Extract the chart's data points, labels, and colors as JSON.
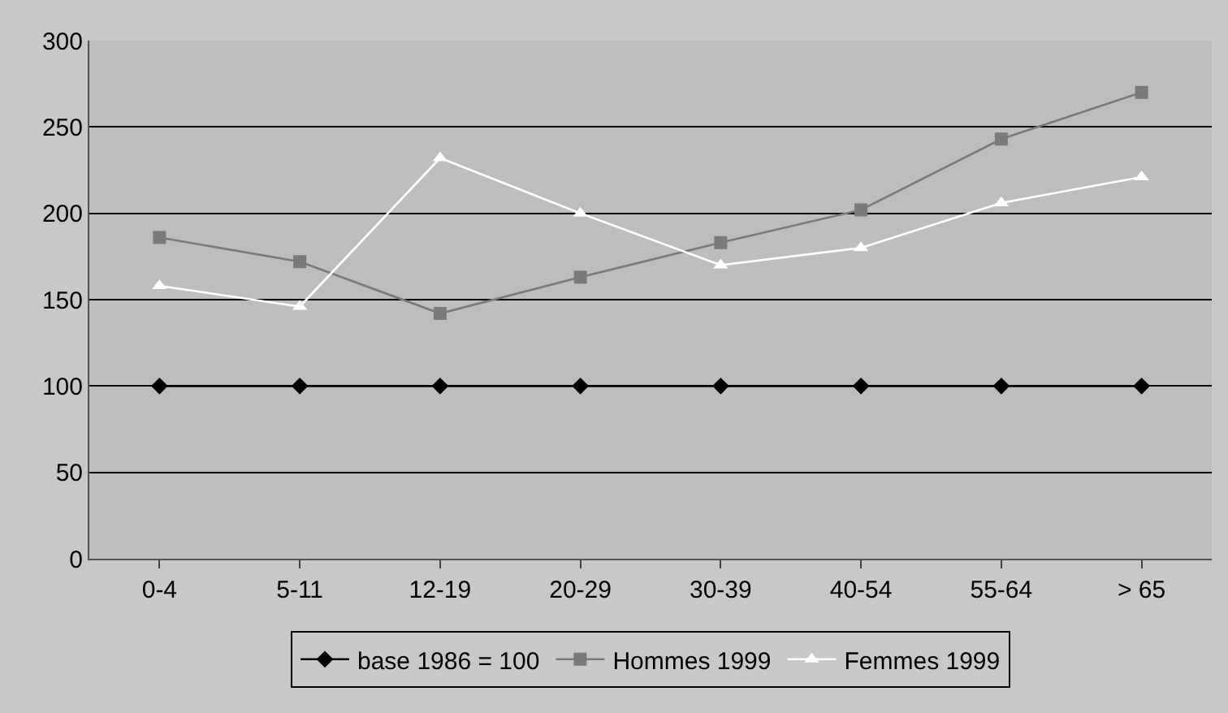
{
  "chart_data": {
    "type": "line",
    "categories": [
      "0-4",
      "5-11",
      "12-19",
      "20-29",
      "30-39",
      "40-54",
      "55-64",
      "> 65"
    ],
    "series": [
      {
        "name": "base 1986 = 100",
        "color": "#000000",
        "marker": "diamond",
        "values": [
          100,
          100,
          100,
          100,
          100,
          100,
          100,
          100
        ]
      },
      {
        "name": "Hommes 1999",
        "color": "#7a7a7a",
        "marker": "square",
        "values": [
          186,
          172,
          142,
          163,
          183,
          202,
          243,
          270
        ]
      },
      {
        "name": "Femmes 1999",
        "color": "#ffffff",
        "marker": "triangle",
        "values": [
          158,
          146,
          232,
          200,
          170,
          180,
          206,
          221
        ]
      }
    ],
    "ylim": [
      0,
      300
    ],
    "yticks": [
      0,
      50,
      100,
      150,
      200,
      250,
      300
    ],
    "grid": "y",
    "legend": "bottom"
  }
}
